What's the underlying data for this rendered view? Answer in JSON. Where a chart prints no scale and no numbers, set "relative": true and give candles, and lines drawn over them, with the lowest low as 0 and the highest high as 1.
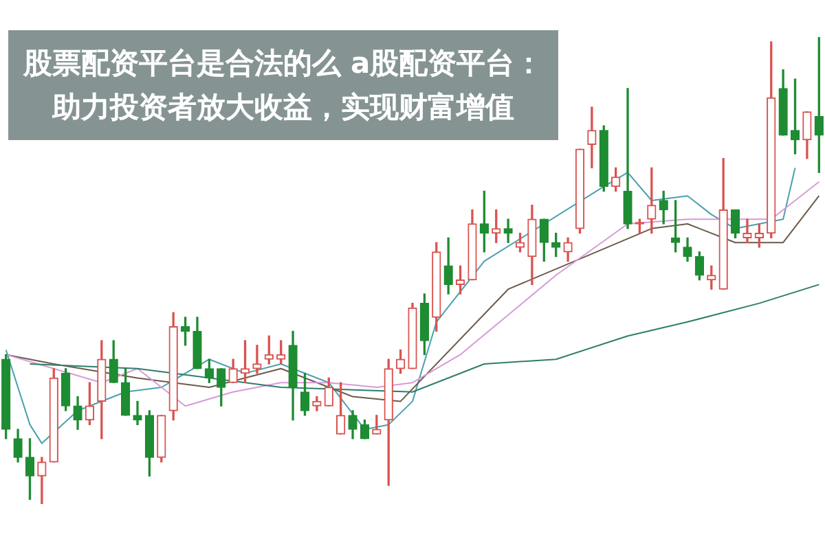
{
  "chart_data": {
    "type": "candlestick",
    "title": "股票配资平台是合法的么 a股配资平台：助力投资者放大收益，实现财富增值",
    "relative": true,
    "marker": "none",
    "categories": [
      null,
      null,
      null,
      null,
      null,
      null,
      null,
      null,
      null,
      null,
      null,
      null,
      null,
      null,
      null,
      null,
      null,
      null,
      null,
      null,
      null,
      null,
      null,
      null,
      null,
      null,
      null,
      null,
      null,
      null,
      null,
      null,
      null,
      null,
      null,
      null,
      null,
      null,
      null,
      null,
      null,
      null,
      null,
      null,
      null,
      null,
      null,
      null,
      null,
      null,
      null,
      null,
      null,
      null,
      null,
      null,
      null,
      null,
      null,
      null,
      null,
      null,
      null,
      null,
      null,
      null,
      null,
      null,
      null
    ],
    "ohlc": [
      [
        0.31,
        0.32,
        0.14,
        0.16
      ],
      [
        0.14,
        0.16,
        0.09,
        0.1
      ],
      [
        0.1,
        0.14,
        0.01,
        0.06
      ],
      [
        0.06,
        0.1,
        0,
        0.09
      ],
      [
        0.09,
        0.29,
        0.09,
        0.27
      ],
      [
        0.28,
        0.29,
        0.2,
        0.21
      ],
      [
        0.21,
        0.23,
        0.16,
        0.18
      ],
      [
        0.18,
        0.26,
        0.17,
        0.21
      ],
      [
        0.22,
        0.35,
        0.14,
        0.31
      ],
      [
        0.31,
        0.35,
        0.26,
        0.26
      ],
      [
        0.26,
        0.29,
        0.19,
        0.19
      ],
      [
        0.19,
        0.22,
        0.17,
        0.18
      ],
      [
        0.19,
        0.2,
        0.06,
        0.1
      ],
      [
        0.1,
        0.19,
        0.09,
        0.19
      ],
      [
        0.2,
        0.41,
        0.18,
        0.38
      ],
      [
        0.38,
        0.4,
        0.34,
        0.37
      ],
      [
        0.37,
        0.4,
        0.29,
        0.29
      ],
      [
        0.29,
        0.31,
        0.26,
        0.27
      ],
      [
        0.29,
        0.29,
        0.21,
        0.25
      ],
      [
        0.26,
        0.31,
        0.26,
        0.29
      ],
      [
        0.28,
        0.35,
        0.26,
        0.29
      ],
      [
        0.29,
        0.34,
        0.28,
        0.3
      ],
      [
        0.31,
        0.36,
        0.3,
        0.32
      ],
      [
        0.31,
        0.35,
        0.3,
        0.32
      ],
      [
        0.34,
        0.37,
        0.18,
        0.25
      ],
      [
        0.24,
        0.28,
        0.19,
        0.2
      ],
      [
        0.21,
        0.23,
        0.2,
        0.22
      ],
      [
        0.21,
        0.27,
        0.21,
        0.25
      ],
      [
        0.15,
        0.26,
        0.15,
        0.19
      ],
      [
        0.19,
        0.2,
        0.14,
        0.16
      ],
      [
        0.17,
        0.18,
        0.14,
        0.14
      ],
      [
        0.15,
        0.19,
        0.15,
        0.16
      ],
      [
        0.18,
        0.31,
        0.04,
        0.29
      ],
      [
        0.29,
        0.33,
        0.28,
        0.31
      ],
      [
        0.29,
        0.43,
        0.29,
        0.42
      ],
      [
        0.43,
        0.45,
        0.32,
        0.35
      ],
      [
        0.4,
        0.56,
        0.37,
        0.54
      ],
      [
        0.51,
        0.57,
        0.45,
        0.47
      ],
      [
        0.47,
        0.51,
        0.45,
        0.48
      ],
      [
        0.48,
        0.63,
        0.48,
        0.6
      ],
      [
        0.6,
        0.67,
        0.54,
        0.58
      ],
      [
        0.58,
        0.63,
        0.56,
        0.59
      ],
      [
        0.59,
        0.61,
        0.56,
        0.58
      ],
      [
        0.55,
        0.58,
        0.54,
        0.56
      ],
      [
        0.53,
        0.64,
        0.47,
        0.61
      ],
      [
        0.61,
        0.61,
        0.52,
        0.56
      ],
      [
        0.56,
        0.58,
        0.53,
        0.55
      ],
      [
        0.54,
        0.57,
        0.52,
        0.56
      ],
      [
        0.59,
        0.76,
        0.58,
        0.76
      ],
      [
        0.77,
        0.85,
        0.72,
        0.8
      ],
      [
        0.8,
        0.81,
        0.67,
        0.68
      ],
      [
        0.68,
        0.72,
        0.67,
        0.7
      ],
      [
        0.67,
        0.89,
        0.59,
        0.6
      ],
      [
        0.6,
        0.61,
        0.58,
        0.6
      ],
      [
        0.61,
        0.72,
        0.58,
        0.64
      ],
      [
        0.65,
        0.67,
        0.6,
        0.63
      ],
      [
        0.57,
        0.65,
        0.54,
        0.56
      ],
      [
        0.55,
        0.57,
        0.52,
        0.53
      ],
      [
        0.53,
        0.54,
        0.48,
        0.49
      ],
      [
        0.48,
        0.51,
        0.46,
        0.49
      ],
      [
        0.46,
        0.74,
        0.46,
        0.63
      ],
      [
        0.63,
        0.63,
        0.57,
        0.58
      ],
      [
        0.57,
        0.61,
        0.56,
        0.58
      ],
      [
        0.57,
        0.6,
        0.55,
        0.58
      ],
      [
        0.58,
        0.99,
        0.57,
        0.87
      ],
      [
        0.89,
        0.93,
        0.79,
        0.79
      ],
      [
        0.8,
        0.91,
        0.75,
        0.78
      ],
      [
        0.78,
        0.84,
        0.74,
        0.84
      ],
      [
        0.83,
        1,
        0.71,
        0.79
      ]
    ],
    "colors": [
      "#1e8c32",
      "#1e8c32",
      "#1e8c32",
      "#d9534f",
      "#d9534f",
      "#1e8c32",
      "#1e8c32",
      "#d9534f",
      "#d9534f",
      "#1e8c32",
      "#1e8c32",
      "#1e8c32",
      "#1e8c32",
      "#d9534f",
      "#d9534f",
      "#1e8c32",
      "#1e8c32",
      "#1e8c32",
      "#1e8c32",
      "#d9534f",
      "#d9534f",
      "#d9534f",
      "#d9534f",
      "#d9534f",
      "#1e8c32",
      "#1e8c32",
      "#d9534f",
      "#d9534f",
      "#d9534f",
      "#1e8c32",
      "#1e8c32",
      "#d9534f",
      "#d9534f",
      "#d9534f",
      "#d9534f",
      "#1e8c32",
      "#d9534f",
      "#1e8c32",
      "#d9534f",
      "#d9534f",
      "#1e8c32",
      "#d9534f",
      "#1e8c32",
      "#d9534f",
      "#d9534f",
      "#1e8c32",
      "#1e8c32",
      "#d9534f",
      "#d9534f",
      "#d9534f",
      "#1e8c32",
      "#d9534f",
      "#1e8c32",
      "#d9534f",
      "#d9534f",
      "#1e8c32",
      "#1e8c32",
      "#1e8c32",
      "#1e8c32",
      "#d9534f",
      "#d9534f",
      "#1e8c32",
      "#d9534f",
      "#d9534f",
      "#d9534f",
      "#1e8c32",
      "#1e8c32",
      "#d9534f",
      "#1e8c32"
    ],
    "series": [
      {
        "type": "line",
        "color": "#2e7d6b",
        "values": [
          null,
          null,
          0.3,
          null,
          null,
          null,
          null,
          null,
          null,
          null,
          null,
          0.29,
          null,
          null,
          null,
          null,
          null,
          null,
          null,
          null,
          null,
          null,
          null,
          0.25,
          null,
          null,
          null,
          null,
          null,
          null,
          null,
          null,
          null,
          null,
          0.24,
          null,
          null,
          null,
          null,
          null,
          0.3,
          null,
          null,
          null,
          null,
          null,
          0.31,
          null,
          null,
          null,
          null,
          null,
          0.36,
          null,
          null,
          null,
          null,
          0.39,
          null,
          null,
          null,
          null,
          null,
          0.43,
          null,
          null,
          null,
          null,
          0.47
        ]
      },
      {
        "type": "line",
        "color": "#d89ad6",
        "values": [
          0.32,
          null,
          null,
          null,
          null,
          null,
          null,
          null,
          0.26,
          null,
          null,
          0.29,
          null,
          null,
          null,
          0.21,
          null,
          null,
          null,
          0.24,
          null,
          null,
          null,
          0.26,
          null,
          null,
          null,
          0.26,
          null,
          null,
          null,
          0.25,
          null,
          null,
          0.26,
          null,
          null,
          null,
          0.32,
          null,
          null,
          null,
          null,
          null,
          null,
          null,
          0.49,
          null,
          null,
          null,
          null,
          null,
          0.6,
          null,
          null,
          null,
          null,
          0.61,
          null,
          null,
          null,
          null,
          null,
          null,
          0.61,
          null,
          null,
          null,
          0.69
        ]
      },
      {
        "type": "line",
        "color": "#6b5a4a",
        "values": [
          0.32,
          null,
          null,
          null,
          0.3,
          null,
          null,
          null,
          null,
          null,
          null,
          0.27,
          null,
          null,
          null,
          null,
          null,
          0.25,
          null,
          null,
          null,
          null,
          null,
          0.29,
          null,
          null,
          null,
          null,
          null,
          0.23,
          null,
          null,
          null,
          0.22,
          null,
          null,
          null,
          null,
          null,
          null,
          null,
          null,
          0.46,
          null,
          null,
          null,
          null,
          null,
          null,
          null,
          null,
          null,
          null,
          null,
          0.59,
          null,
          null,
          0.6,
          null,
          null,
          null,
          0.56,
          null,
          null,
          null,
          0.56,
          null,
          null,
          0.66
        ]
      },
      {
        "type": "line",
        "color": "#4aa0b0",
        "values": [
          0.33,
          null,
          0.17,
          0.13,
          null,
          null,
          0.2,
          null,
          null,
          null,
          0.24,
          null,
          null,
          0.25,
          null,
          null,
          null,
          0.31,
          null,
          null,
          0.28,
          null,
          null,
          0.3,
          null,
          null,
          null,
          0.26,
          null,
          null,
          0.16,
          null,
          0.17,
          null,
          0.22,
          null,
          0.39,
          null,
          null,
          null,
          0.52,
          null,
          null,
          null,
          null,
          null,
          null,
          null,
          null,
          null,
          0.68,
          null,
          0.71,
          null,
          0.65,
          null,
          null,
          0.66,
          null,
          0.62,
          null,
          0.59,
          null,
          null,
          null,
          0.61,
          0.72,
          null,
          null
        ]
      }
    ]
  }
}
